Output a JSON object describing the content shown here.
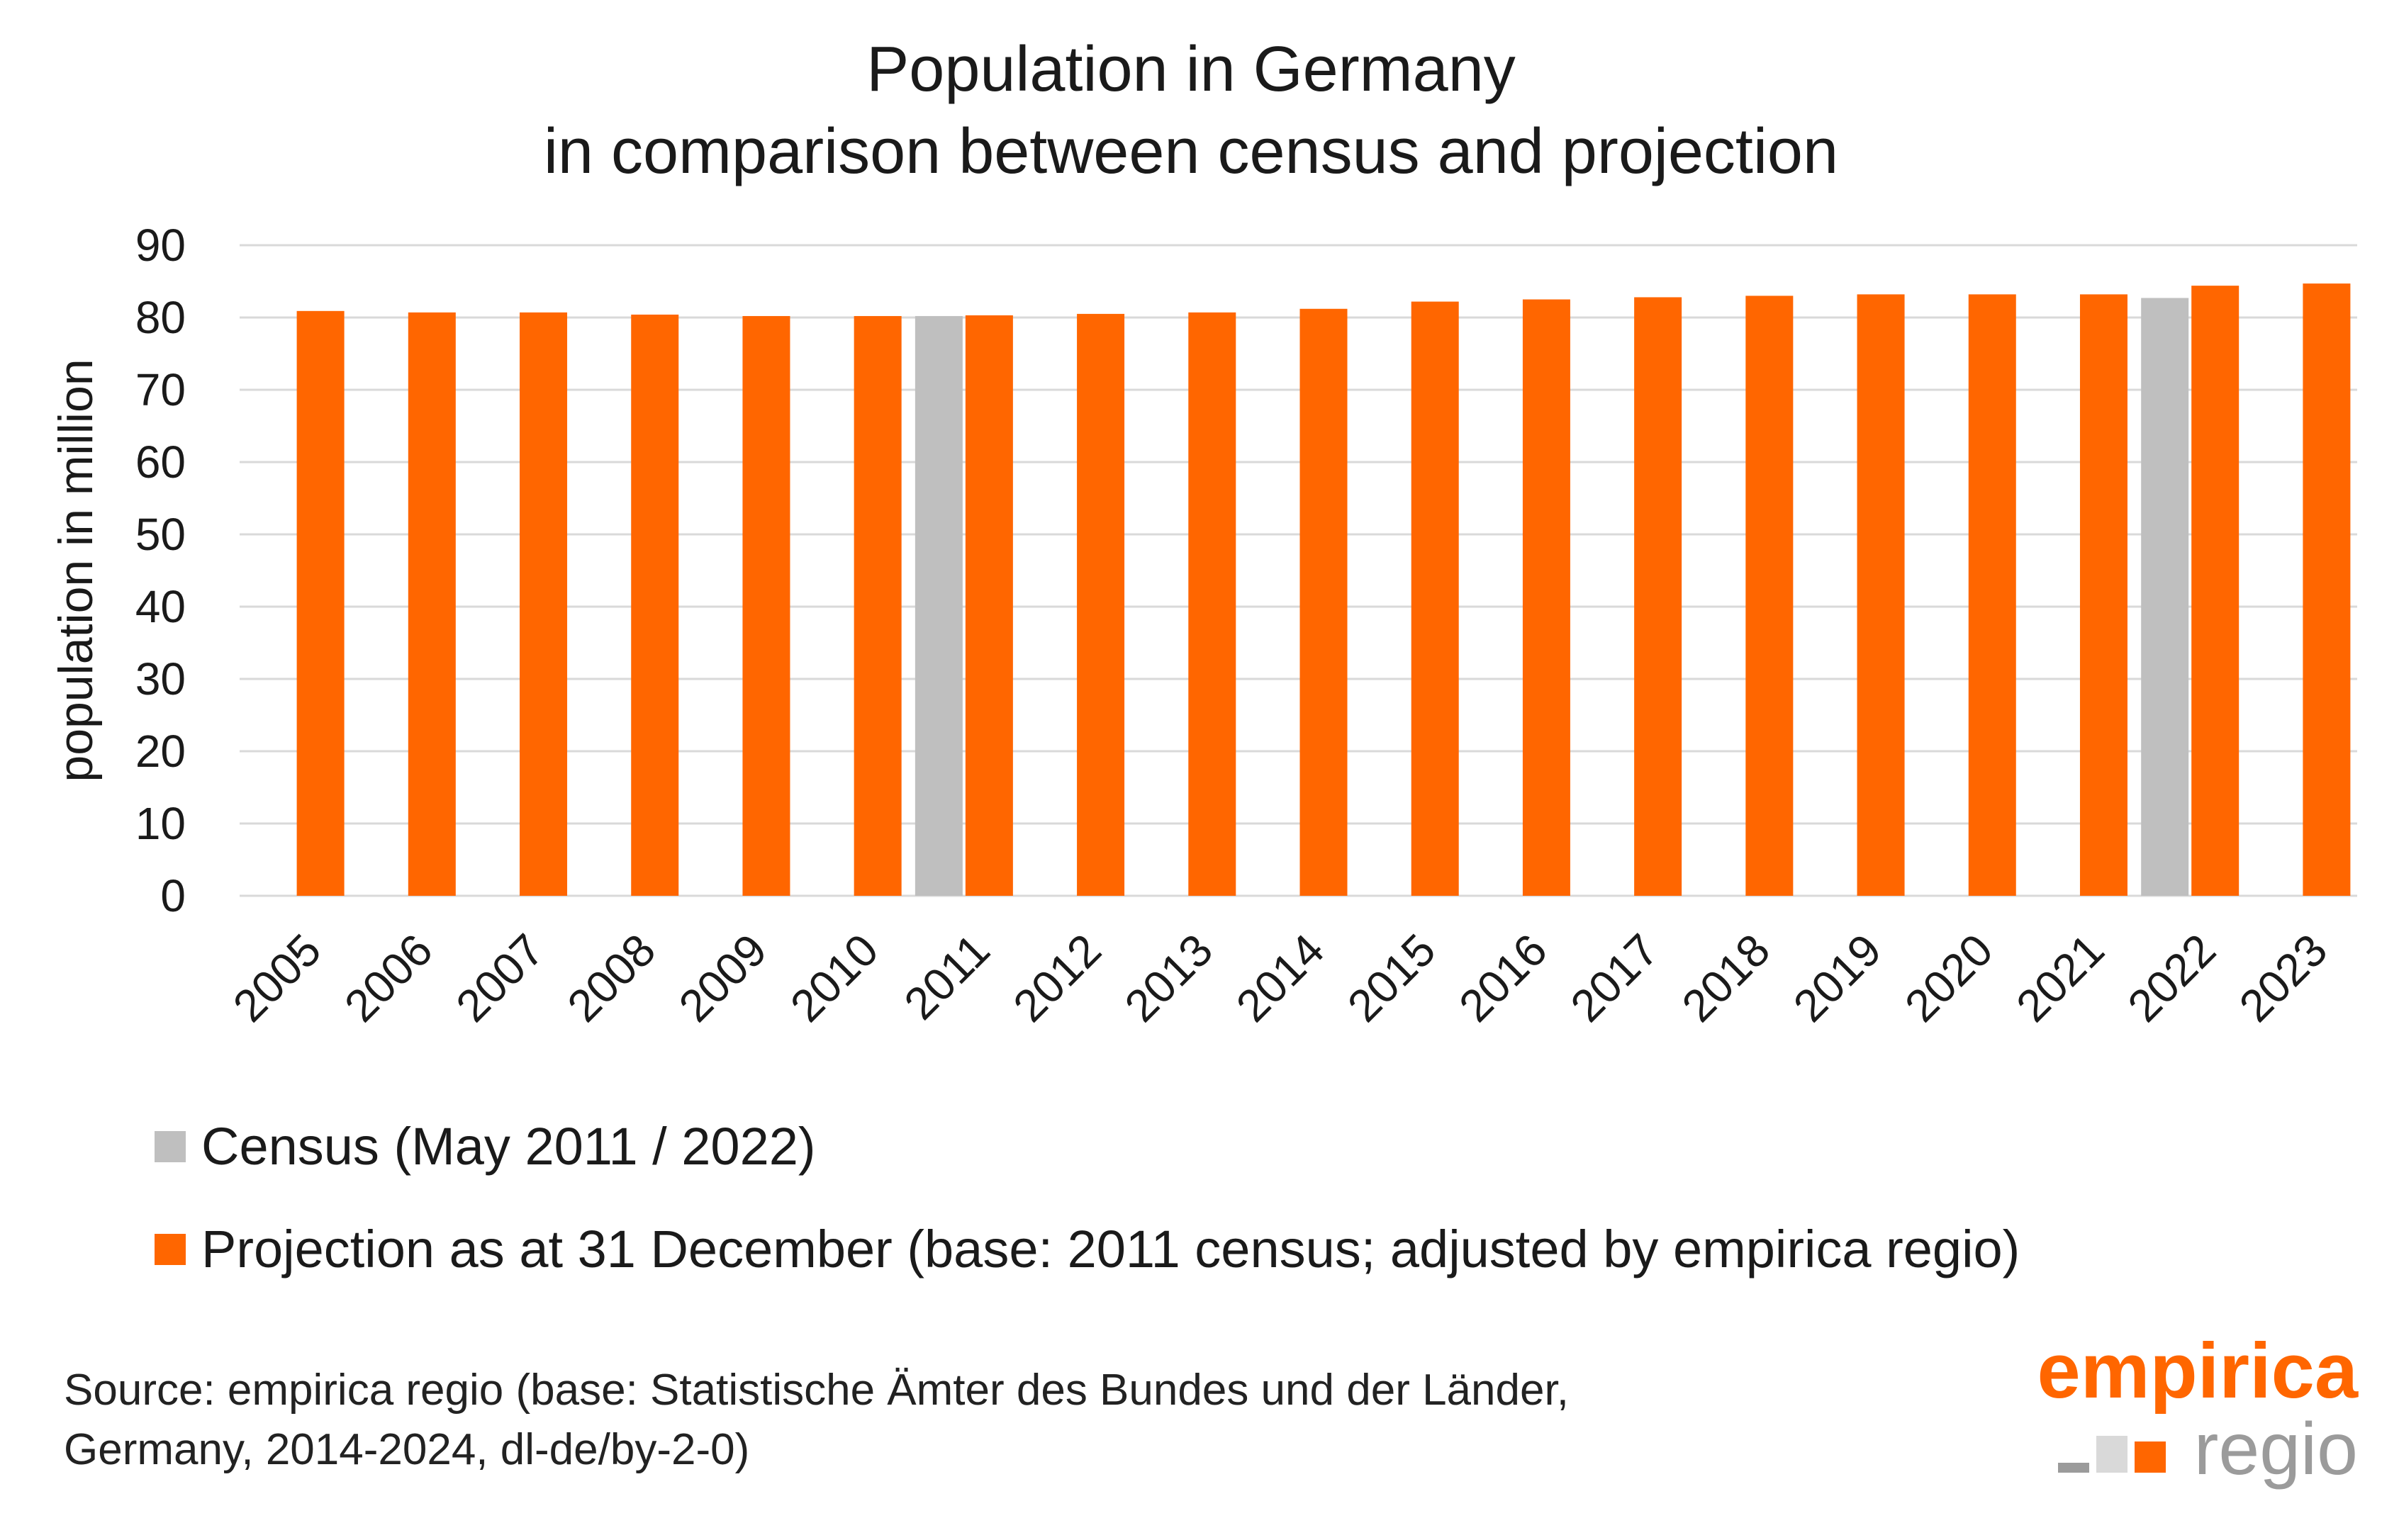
{
  "chart_data": {
    "type": "bar",
    "title": [
      "Population in Germany",
      "in comparison between census and projection"
    ],
    "ylabel": "population in million",
    "xlabel": "",
    "ylim": [
      0,
      90
    ],
    "yticks": [
      0,
      10,
      20,
      30,
      40,
      50,
      60,
      70,
      80,
      90
    ],
    "grid": true,
    "categories": [
      "2005",
      "2006",
      "2007",
      "2008",
      "2009",
      "2010",
      "2011",
      "2012",
      "2013",
      "2014",
      "2015",
      "2016",
      "2017",
      "2018",
      "2019",
      "2020",
      "2021",
      "2022",
      "2023"
    ],
    "series": [
      {
        "name": "Census (May 2011 / 2022)",
        "color": "#bfbfbf",
        "values": [
          null,
          null,
          null,
          null,
          null,
          null,
          80.2,
          null,
          null,
          null,
          null,
          null,
          null,
          null,
          null,
          null,
          null,
          82.7,
          null
        ]
      },
      {
        "name": "Projection as at 31 December (base: 2011 census; adjusted by empirica regio)",
        "color": "#ff6600",
        "values": [
          80.9,
          80.7,
          80.7,
          80.4,
          80.2,
          80.2,
          80.3,
          80.5,
          80.7,
          81.2,
          82.2,
          82.5,
          82.8,
          83.0,
          83.2,
          83.2,
          83.2,
          84.4,
          84.7
        ]
      }
    ],
    "legend_placement": "bottom-left"
  },
  "source": [
    "Source: empirica regio (base: Statistische Ämter des Bundes und der Länder,",
    "Germany, 2014-2024, dl-de/by-2-0)"
  ],
  "logo": {
    "top": "empirica",
    "bottom": "regio",
    "colors": [
      "#9b9b9b",
      "#d9d9d9",
      "#ff6600"
    ]
  }
}
